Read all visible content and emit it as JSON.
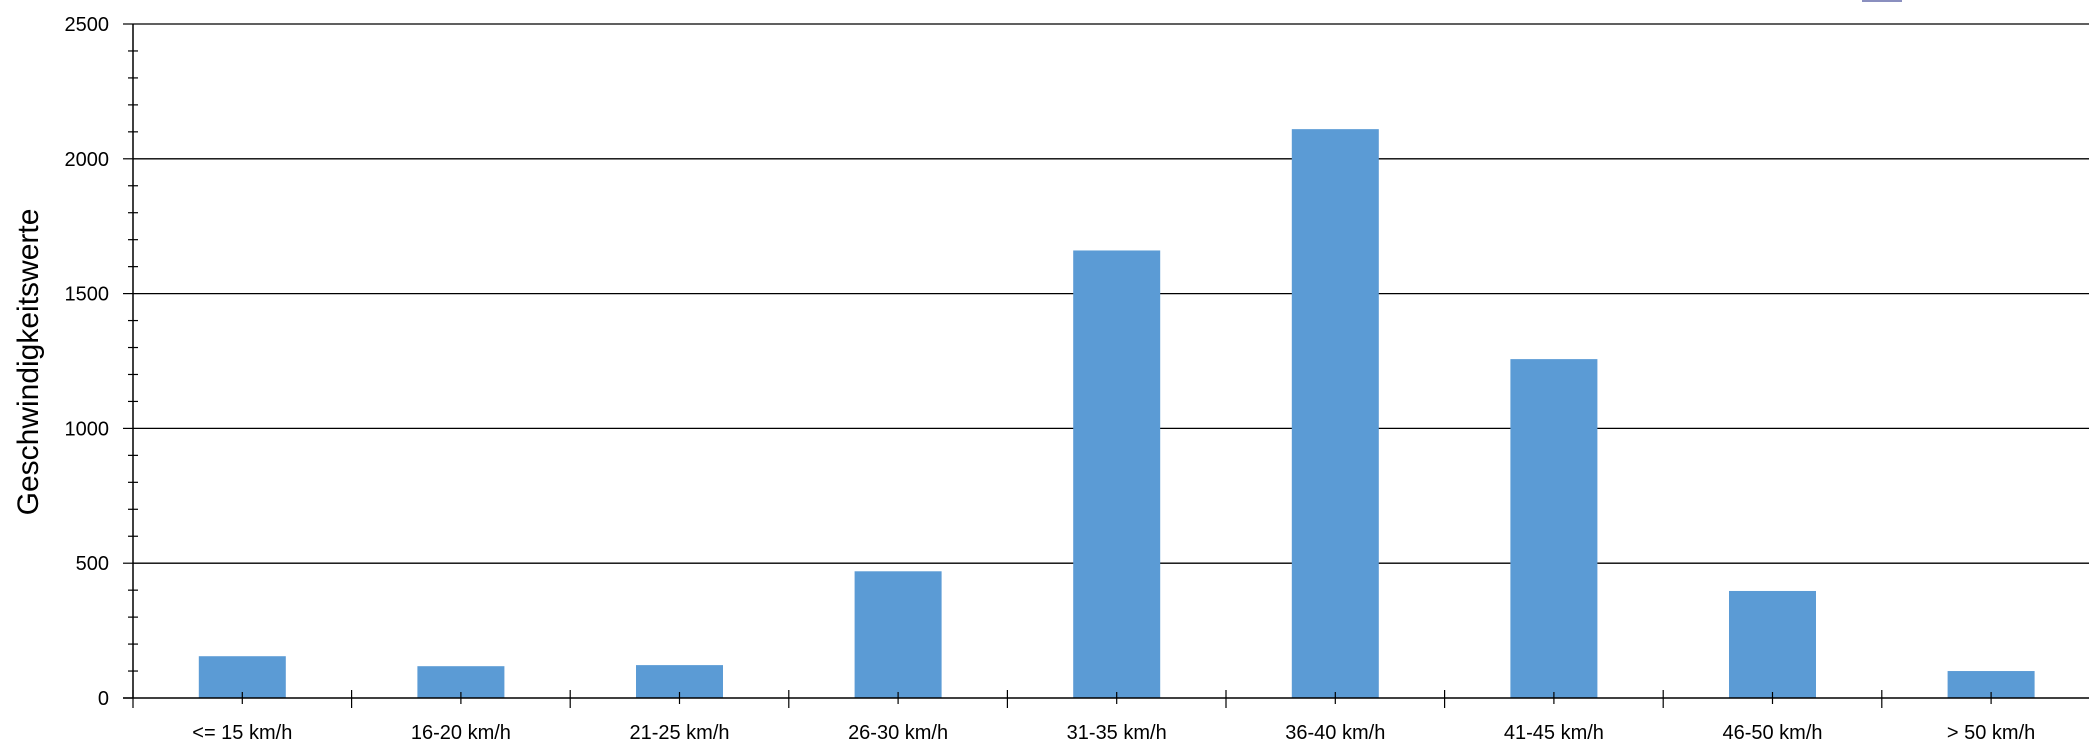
{
  "chart_data": {
    "type": "bar",
    "categories": [
      "<= 15 km/h",
      "16-20 km/h",
      "21-25 km/h",
      "26-30 km/h",
      "31-35 km/h",
      "36-40 km/h",
      "41-45 km/h",
      "46-50 km/h",
      "> 50 km/h"
    ],
    "series": [
      {
        "values": [
          155,
          118,
          122,
          470,
          1660,
          2110,
          1257,
          397,
          100
        ]
      }
    ],
    "xlabel": "",
    "ylabel": "Geschwindigkeitswerte",
    "ylim": [
      0,
      2500
    ],
    "yticks": [
      0,
      500,
      1000,
      1500,
      2000,
      2500
    ],
    "grid": true,
    "bar_color": "#5b9bd5"
  }
}
